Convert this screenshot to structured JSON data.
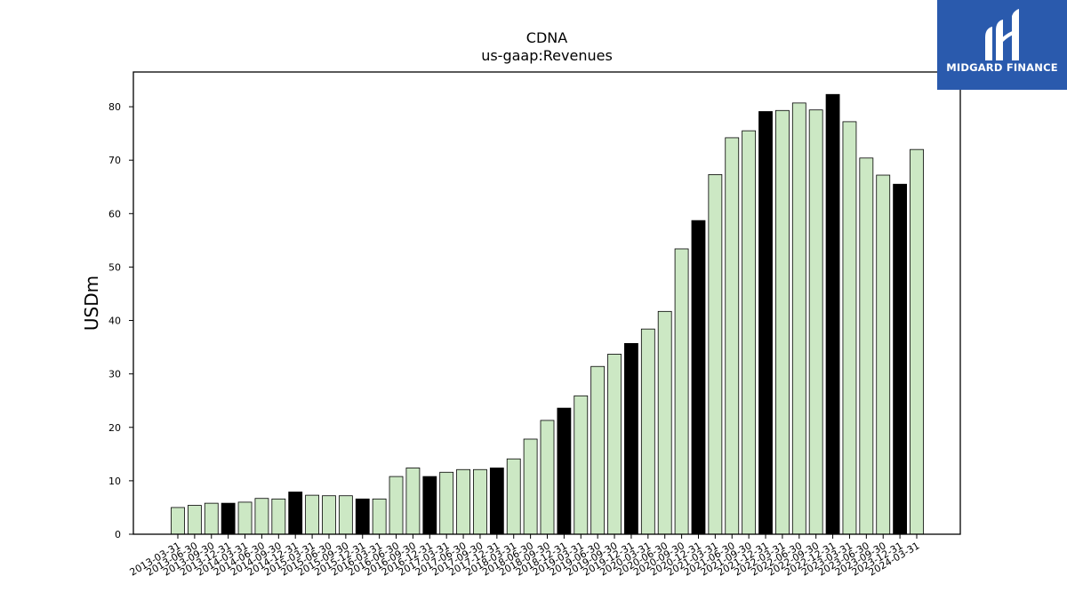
{
  "logo": {
    "text": "MIDGARD FINANCE",
    "color": "#2a5aad"
  },
  "chart_data": {
    "type": "bar",
    "title": "CDNA",
    "subtitle": "us-gaap:Revenues",
    "xlabel": "",
    "ylabel": "USDm",
    "ylim": [
      0,
      86.5
    ],
    "yticks": [
      0,
      10,
      20,
      30,
      40,
      50,
      60,
      70,
      80
    ],
    "grid": false,
    "bar_color": "#cce8c4",
    "highlight_color": "#000000",
    "highlight_rule": "Q4 (fiscal year-end) bars drawn in black",
    "categories": [
      "2013-03-31",
      "2013-06-30",
      "2013-09-30",
      "2013-12-31",
      "2014-03-31",
      "2014-06-30",
      "2014-09-30",
      "2014-12-31",
      "2015-03-31",
      "2015-06-30",
      "2015-09-30",
      "2015-12-31",
      "2016-03-31",
      "2016-06-30",
      "2016-09-30",
      "2016-12-31",
      "2017-03-31",
      "2017-06-30",
      "2017-09-30",
      "2017-12-31",
      "2018-03-31",
      "2018-06-30",
      "2018-09-30",
      "2018-12-31",
      "2019-03-31",
      "2019-06-30",
      "2019-09-30",
      "2019-12-31",
      "2020-03-31",
      "2020-06-30",
      "2020-09-30",
      "2020-12-31",
      "2021-03-31",
      "2021-06-30",
      "2021-09-30",
      "2021-12-31",
      "2022-03-31",
      "2022-06-30",
      "2022-09-30",
      "2022-12-31",
      "2023-03-31",
      "2023-06-30",
      "2023-09-30",
      "2023-12-31",
      "2024-03-31"
    ],
    "values": [
      5.0,
      5.4,
      5.8,
      5.8,
      6.0,
      6.7,
      6.6,
      7.9,
      7.3,
      7.2,
      7.2,
      6.6,
      6.6,
      10.8,
      12.4,
      10.8,
      11.6,
      12.1,
      12.1,
      12.4,
      14.1,
      17.8,
      21.3,
      23.6,
      25.9,
      31.4,
      33.7,
      35.7,
      38.4,
      41.7,
      53.4,
      58.7,
      67.3,
      74.2,
      75.5,
      79.1,
      79.3,
      80.7,
      79.4,
      82.3,
      77.2,
      70.4,
      67.2,
      65.5,
      72.0
    ]
  }
}
